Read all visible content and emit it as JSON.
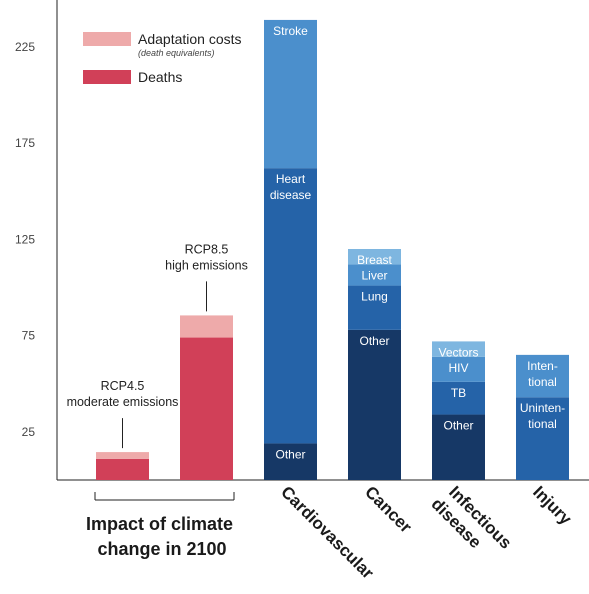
{
  "chart_data": {
    "type": "bar",
    "stacked": true,
    "ylim": [
      0,
      240
    ],
    "yticks": [
      25,
      75,
      125,
      175,
      225
    ],
    "legend": {
      "placement": "top-left",
      "items": [
        {
          "label": "Adaptation costs",
          "sublabel": "(death equivalents)",
          "color": "#eeaaaa"
        },
        {
          "label": "Deaths",
          "color": "#d14058"
        }
      ]
    },
    "climate_group_label": "Impact of climate change in 2100",
    "climate_bars": [
      {
        "name": "RCP4.5",
        "annotation": [
          "RCP4.5",
          "moderate emissions"
        ],
        "segments": [
          {
            "name": "Deaths",
            "value": 11,
            "color": "#d14058"
          },
          {
            "name": "Adaptation costs",
            "value": 3.5,
            "color": "#eeaaaa"
          }
        ]
      },
      {
        "name": "RCP8.5",
        "annotation": [
          "RCP8.5",
          "high emissions"
        ],
        "segments": [
          {
            "name": "Deaths",
            "value": 74,
            "color": "#d14058"
          },
          {
            "name": "Adaptation costs",
            "value": 11.5,
            "color": "#eeaaaa"
          }
        ]
      }
    ],
    "categories": [
      "Cardiovascular",
      "Cancer",
      "Infectious disease",
      "Injury"
    ],
    "cause_bars": [
      {
        "category": "Cardiovascular",
        "segments": [
          {
            "label": "Other",
            "value": 19,
            "color": "#163866"
          },
          {
            "label": "Heart disease",
            "value": 143,
            "color": "#2563a8"
          },
          {
            "label": "Stroke",
            "value": 77,
            "color": "#4b8fcc"
          }
        ]
      },
      {
        "category": "Cancer",
        "segments": [
          {
            "label": "Other",
            "value": 78,
            "color": "#163866"
          },
          {
            "label": "Lung",
            "value": 23,
            "color": "#2563a8"
          },
          {
            "label": "Liver",
            "value": 11,
            "color": "#4b8fcc"
          },
          {
            "label": "Breast",
            "value": 8,
            "color": "#7eb6e0"
          }
        ]
      },
      {
        "category": "Infectious disease",
        "segments": [
          {
            "label": "Other",
            "value": 34,
            "color": "#163866"
          },
          {
            "label": "TB",
            "value": 17,
            "color": "#2563a8"
          },
          {
            "label": "HIV",
            "value": 13,
            "color": "#4b8fcc"
          },
          {
            "label": "Vectors",
            "value": 8,
            "color": "#7eb6e0"
          }
        ]
      },
      {
        "category": "Injury",
        "segments": [
          {
            "label": "Unintentional",
            "display": [
              "Uninten-",
              "tional"
            ],
            "value": 43,
            "color": "#2563a8"
          },
          {
            "label": "Intentional",
            "display": [
              "Inten-",
              "tional"
            ],
            "value": 22,
            "color": "#4b8fcc"
          }
        ]
      }
    ]
  }
}
